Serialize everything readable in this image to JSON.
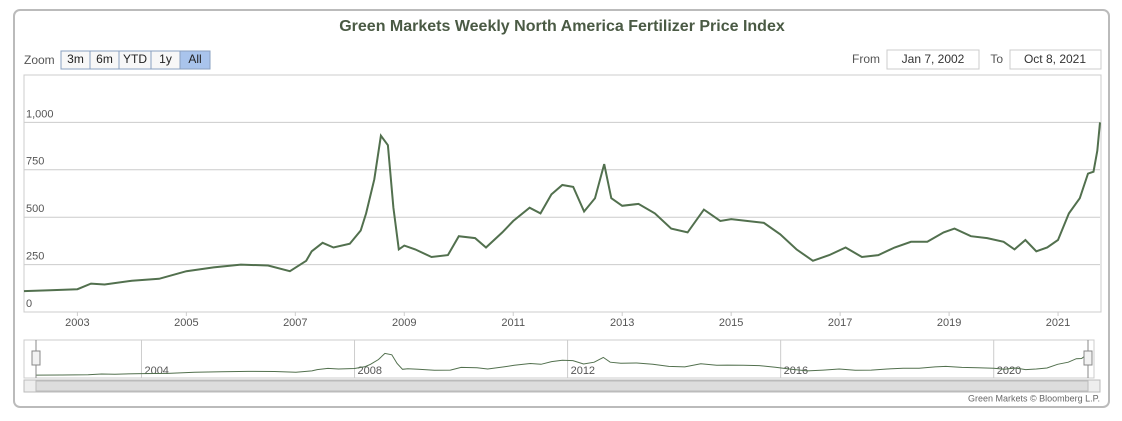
{
  "chart_data": {
    "type": "line",
    "title": "Green Markets Weekly North America Fertilizer Price Index",
    "zoom_label": "Zoom",
    "zoom_buttons": [
      "3m",
      "6m",
      "YTD",
      "1y",
      "All"
    ],
    "range_from_label": "From",
    "range_from": "Jan 7, 2002",
    "range_to_label": "To",
    "range_to": "Oct 8, 2021",
    "credits": "Green Markets © Bloomberg L.P.",
    "xlim": [
      2002.02,
      2021.77
    ],
    "xticks": [
      2003,
      2005,
      2007,
      2009,
      2011,
      2013,
      2015,
      2017,
      2019,
      2021
    ],
    "navigator_xticks": [
      2004,
      2008,
      2012,
      2016,
      2020
    ],
    "ylim": [
      0,
      1250
    ],
    "yticks": [
      0,
      250,
      500,
      750,
      {
        "value": 1000,
        "label": "1,000"
      }
    ],
    "grid": true,
    "series": [
      {
        "color": "#52704e",
        "x": [
          2002.02,
          2002.5,
          2003.0,
          2003.25,
          2003.5,
          2004.0,
          2004.5,
          2005.0,
          2005.5,
          2006.0,
          2006.5,
          2006.9,
          2007.2,
          2007.3,
          2007.5,
          2007.7,
          2008.0,
          2008.2,
          2008.3,
          2008.45,
          2008.57,
          2008.7,
          2008.8,
          2008.9,
          2009.0,
          2009.2,
          2009.5,
          2009.8,
          2010.0,
          2010.3,
          2010.5,
          2010.8,
          2011.0,
          2011.3,
          2011.5,
          2011.7,
          2011.9,
          2012.1,
          2012.3,
          2012.5,
          2012.67,
          2012.8,
          2013.0,
          2013.3,
          2013.6,
          2013.9,
          2014.2,
          2014.5,
          2014.8,
          2015.0,
          2015.3,
          2015.6,
          2015.9,
          2016.2,
          2016.5,
          2016.8,
          2017.1,
          2017.4,
          2017.7,
          2018.0,
          2018.3,
          2018.6,
          2018.9,
          2019.1,
          2019.4,
          2019.7,
          2020.0,
          2020.2,
          2020.4,
          2020.6,
          2020.8,
          2021.0,
          2021.2,
          2021.4,
          2021.55,
          2021.65,
          2021.72,
          2021.77
        ],
        "values": [
          110,
          115,
          120,
          150,
          145,
          165,
          175,
          215,
          235,
          250,
          245,
          215,
          270,
          320,
          365,
          340,
          360,
          430,
          520,
          700,
          930,
          880,
          550,
          330,
          350,
          330,
          290,
          300,
          400,
          390,
          340,
          420,
          480,
          550,
          520,
          620,
          670,
          660,
          530,
          600,
          780,
          600,
          560,
          570,
          520,
          440,
          420,
          540,
          480,
          490,
          480,
          470,
          410,
          330,
          270,
          300,
          340,
          290,
          300,
          340,
          370,
          370,
          420,
          440,
          400,
          390,
          370,
          330,
          380,
          320,
          340,
          380,
          520,
          600,
          730,
          740,
          850,
          1000
        ]
      }
    ]
  }
}
